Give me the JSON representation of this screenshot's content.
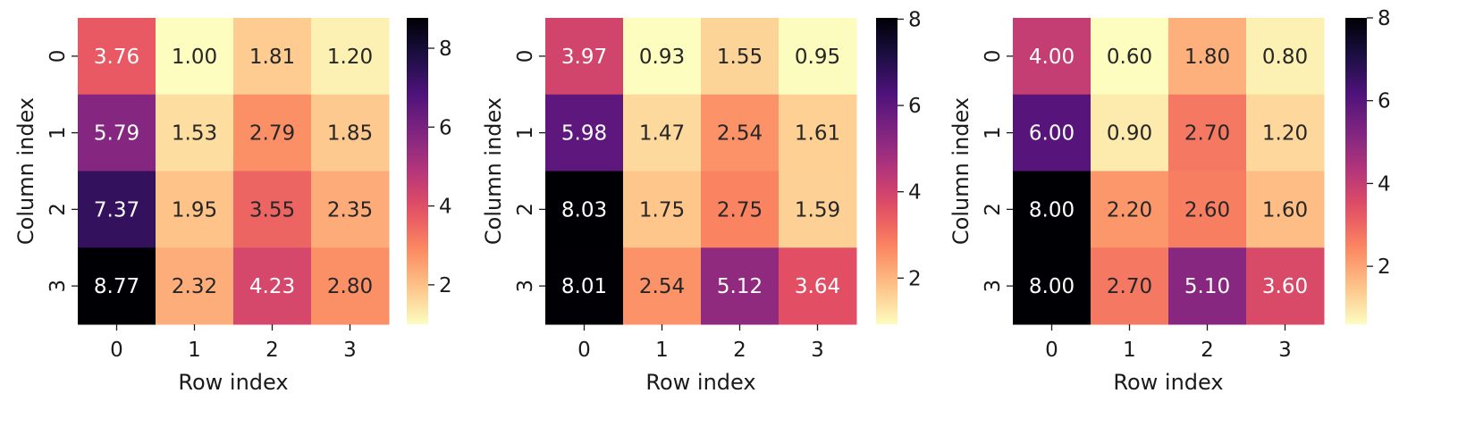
{
  "chart_data": [
    {
      "type": "heatmap",
      "xlabel": "Row index",
      "ylabel": "Column index",
      "x_ticks": [
        "0",
        "1",
        "2",
        "3"
      ],
      "y_ticks": [
        "0",
        "1",
        "2",
        "3"
      ],
      "values": [
        [
          3.76,
          1.0,
          1.81,
          1.2
        ],
        [
          5.79,
          1.53,
          2.79,
          1.85
        ],
        [
          7.37,
          1.95,
          3.55,
          2.35
        ],
        [
          8.77,
          2.32,
          4.23,
          2.8
        ]
      ],
      "labels": [
        [
          "3.76",
          "1.00",
          "1.81",
          "1.20"
        ],
        [
          "5.79",
          "1.53",
          "2.79",
          "1.85"
        ],
        [
          "7.37",
          "1.95",
          "3.55",
          "2.35"
        ],
        [
          "8.77",
          "2.32",
          "4.23",
          "2.80"
        ]
      ],
      "vmin": 1.0,
      "vmax": 8.77,
      "colorbar_ticks": [
        "2",
        "4",
        "6",
        "8"
      ],
      "colormap": "magma_r"
    },
    {
      "type": "heatmap",
      "xlabel": "Row index",
      "ylabel": "Column index",
      "x_ticks": [
        "0",
        "1",
        "2",
        "3"
      ],
      "y_ticks": [
        "0",
        "1",
        "2",
        "3"
      ],
      "values": [
        [
          3.97,
          0.93,
          1.55,
          0.95
        ],
        [
          5.98,
          1.47,
          2.54,
          1.61
        ],
        [
          8.03,
          1.75,
          2.75,
          1.59
        ],
        [
          8.01,
          2.54,
          5.12,
          3.64
        ]
      ],
      "labels": [
        [
          "3.97",
          "0.93",
          "1.55",
          "0.95"
        ],
        [
          "5.98",
          "1.47",
          "2.54",
          "1.61"
        ],
        [
          "8.03",
          "1.75",
          "2.75",
          "1.59"
        ],
        [
          "8.01",
          "2.54",
          "5.12",
          "3.64"
        ]
      ],
      "vmin": 0.93,
      "vmax": 8.03,
      "colorbar_ticks": [
        "2",
        "4",
        "6",
        "8"
      ],
      "colormap": "magma_r"
    },
    {
      "type": "heatmap",
      "xlabel": "Row index",
      "ylabel": "Column index",
      "x_ticks": [
        "0",
        "1",
        "2",
        "3"
      ],
      "y_ticks": [
        "0",
        "1",
        "2",
        "3"
      ],
      "values": [
        [
          4.0,
          0.6,
          1.8,
          0.8
        ],
        [
          6.0,
          0.9,
          2.7,
          1.2
        ],
        [
          8.0,
          2.2,
          2.6,
          1.6
        ],
        [
          8.0,
          2.7,
          5.1,
          3.6
        ]
      ],
      "labels": [
        [
          "4.00",
          "0.60",
          "1.80",
          "0.80"
        ],
        [
          "6.00",
          "0.90",
          "2.70",
          "1.20"
        ],
        [
          "8.00",
          "2.20",
          "2.60",
          "1.60"
        ],
        [
          "8.00",
          "2.70",
          "5.10",
          "3.60"
        ]
      ],
      "vmin": 0.6,
      "vmax": 8.0,
      "colorbar_ticks": [
        "2",
        "4",
        "6",
        "8"
      ],
      "colormap": "magma_r"
    }
  ]
}
